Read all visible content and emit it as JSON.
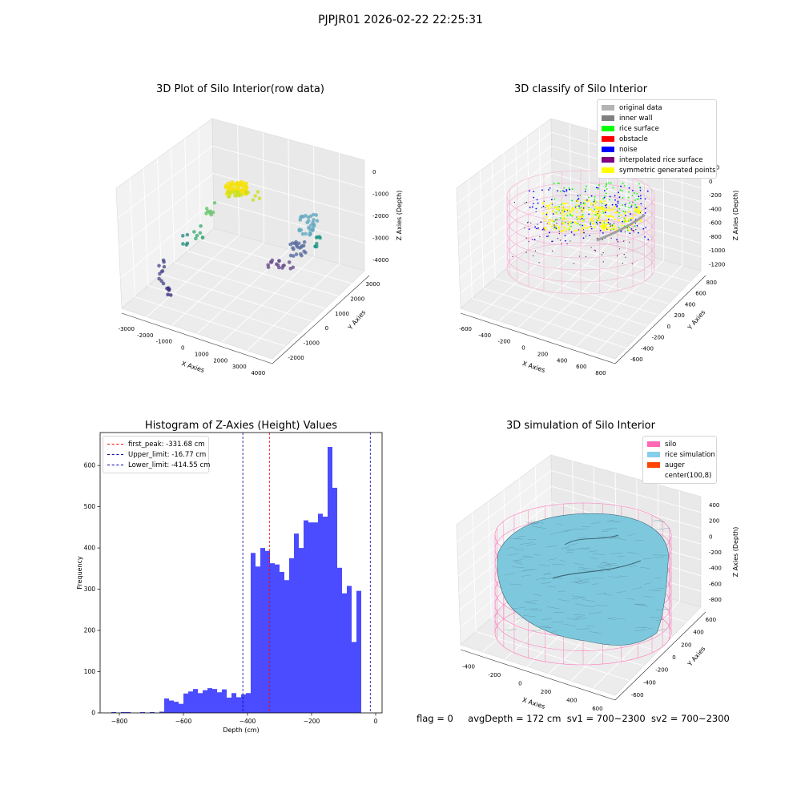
{
  "suptitle": "PJPJR01 2026-02-22 22:25:31",
  "panels": {
    "raw": {
      "title": "3D Plot of Silo Interior(row data)",
      "xlabel": "X Axies",
      "ylabel": "Y Axies",
      "zlabel": "Z Axies (Depth)",
      "xticks": [
        "-3000",
        "-2000",
        "-1000",
        "0",
        "1000",
        "2000",
        "3000",
        "4000"
      ],
      "yticks": [
        "-2000",
        "-1000",
        "0",
        "1000",
        "2000",
        "3000"
      ],
      "zticks": [
        "0",
        "-1000",
        "-2000",
        "-3000",
        "-4000"
      ]
    },
    "classify": {
      "title": "3D classify of Silo Interior",
      "xlabel": "X Axies",
      "ylabel": "Y Axies",
      "zlabel": "Z Axies (Depth)",
      "xticks": [
        "-600",
        "-400",
        "-200",
        "0",
        "200",
        "400",
        "600",
        "800"
      ],
      "yticks": [
        "-600",
        "-400",
        "-200",
        "0",
        "200",
        "400",
        "600",
        "800"
      ],
      "zticks": [
        "200",
        "0",
        "-200",
        "-400",
        "-600",
        "-800",
        "-1000",
        "-1200"
      ],
      "legend": [
        {
          "label": "original data",
          "color": "#b3b3b3"
        },
        {
          "label": "inner wall",
          "color": "#808080"
        },
        {
          "label": "rice surface",
          "color": "#00ff00"
        },
        {
          "label": "obstacle",
          "color": "#ff0000"
        },
        {
          "label": "noise",
          "color": "#0000ff"
        },
        {
          "label": "interpolated rice surface",
          "color": "#800080"
        },
        {
          "label": "symmetric generated points",
          "color": "#ffff00"
        }
      ]
    },
    "simulation": {
      "title": "3D simulation of Silo Interior",
      "xlabel": "X Axies",
      "ylabel": "Y Axies",
      "zlabel": "Z Axies (Depth)",
      "xticks": [
        "-400",
        "-200",
        "0",
        "200",
        "400",
        "600"
      ],
      "yticks": [
        "-600",
        "-400",
        "-200",
        "0",
        "200",
        "400",
        "600"
      ],
      "zticks": [
        "400",
        "200",
        "0",
        "-200",
        "-400",
        "-600",
        "-800"
      ],
      "legend": [
        {
          "label": "silo",
          "color": "#ff69b4"
        },
        {
          "label": "rice simulation",
          "color": "#87ceeb"
        },
        {
          "label": "auger",
          "color": "#ff4500"
        },
        {
          "label": "center(100,8)",
          "color": ""
        }
      ]
    }
  },
  "chart_data": {
    "type": "bar",
    "title": "Histogram of Z-Axies (Height) Values",
    "xlabel": "Depth (cm)",
    "ylabel": "Frequency",
    "xlim": [
      -860,
      20
    ],
    "ylim": [
      0,
      680
    ],
    "xticks": [
      -800,
      -600,
      -400,
      -200,
      0
    ],
    "yticks": [
      0,
      100,
      200,
      300,
      400,
      500,
      600
    ],
    "bar_color": "#4b4bff",
    "bins": [
      {
        "x0": -825,
        "x1": -810,
        "v": 2
      },
      {
        "x0": -795,
        "x1": -765,
        "v": 2
      },
      {
        "x0": -735,
        "x1": -720,
        "v": 2
      },
      {
        "x0": -705,
        "x1": -690,
        "v": 2
      },
      {
        "x0": -675,
        "x1": -660,
        "v": 3
      },
      {
        "x0": -660,
        "x1": -645,
        "v": 35
      },
      {
        "x0": -645,
        "x1": -630,
        "v": 30
      },
      {
        "x0": -630,
        "x1": -615,
        "v": 27
      },
      {
        "x0": -615,
        "x1": -600,
        "v": 22
      },
      {
        "x0": -600,
        "x1": -585,
        "v": 47
      },
      {
        "x0": -585,
        "x1": -570,
        "v": 52
      },
      {
        "x0": -570,
        "x1": -555,
        "v": 58
      },
      {
        "x0": -555,
        "x1": -540,
        "v": 48
      },
      {
        "x0": -540,
        "x1": -525,
        "v": 55
      },
      {
        "x0": -525,
        "x1": -510,
        "v": 60
      },
      {
        "x0": -510,
        "x1": -495,
        "v": 58
      },
      {
        "x0": -495,
        "x1": -480,
        "v": 50
      },
      {
        "x0": -480,
        "x1": -465,
        "v": 57
      },
      {
        "x0": -465,
        "x1": -450,
        "v": 37
      },
      {
        "x0": -450,
        "x1": -435,
        "v": 48
      },
      {
        "x0": -435,
        "x1": -420,
        "v": 38
      },
      {
        "x0": -420,
        "x1": -405,
        "v": 45
      },
      {
        "x0": -405,
        "x1": -390,
        "v": 48
      },
      {
        "x0": -390,
        "x1": -375,
        "v": 388
      },
      {
        "x0": -375,
        "x1": -360,
        "v": 355
      },
      {
        "x0": -360,
        "x1": -345,
        "v": 400
      },
      {
        "x0": -345,
        "x1": -330,
        "v": 393
      },
      {
        "x0": -330,
        "x1": -315,
        "v": 363
      },
      {
        "x0": -315,
        "x1": -300,
        "v": 360
      },
      {
        "x0": -300,
        "x1": -285,
        "v": 342
      },
      {
        "x0": -285,
        "x1": -270,
        "v": 322
      },
      {
        "x0": -270,
        "x1": -255,
        "v": 375
      },
      {
        "x0": -255,
        "x1": -240,
        "v": 435
      },
      {
        "x0": -240,
        "x1": -225,
        "v": 400
      },
      {
        "x0": -225,
        "x1": -210,
        "v": 467
      },
      {
        "x0": -210,
        "x1": -195,
        "v": 462
      },
      {
        "x0": -195,
        "x1": -180,
        "v": 462
      },
      {
        "x0": -180,
        "x1": -165,
        "v": 483
      },
      {
        "x0": -165,
        "x1": -150,
        "v": 476
      },
      {
        "x0": -150,
        "x1": -135,
        "v": 645
      },
      {
        "x0": -135,
        "x1": -120,
        "v": 546
      },
      {
        "x0": -120,
        "x1": -105,
        "v": 352
      },
      {
        "x0": -105,
        "x1": -90,
        "v": 290
      },
      {
        "x0": -90,
        "x1": -75,
        "v": 308
      },
      {
        "x0": -75,
        "x1": -60,
        "v": 172
      },
      {
        "x0": -60,
        "x1": -45,
        "v": 296
      }
    ],
    "vlines": [
      {
        "label": "first_peak: -331.68 cm",
        "x": -331.68,
        "color": "#ff0000"
      },
      {
        "label": "Upper_limit: -16.77 cm",
        "x": -16.77,
        "color": "#0000aa"
      },
      {
        "label": "Lower_limit: -414.55 cm",
        "x": -414.55,
        "color": "#0000aa"
      }
    ]
  },
  "footer": {
    "flag": "flag = 0",
    "avg": "avgDepth = 172 cm",
    "sv1": "sv1 = 700~2300",
    "sv2": "sv2 = 700~2300"
  }
}
